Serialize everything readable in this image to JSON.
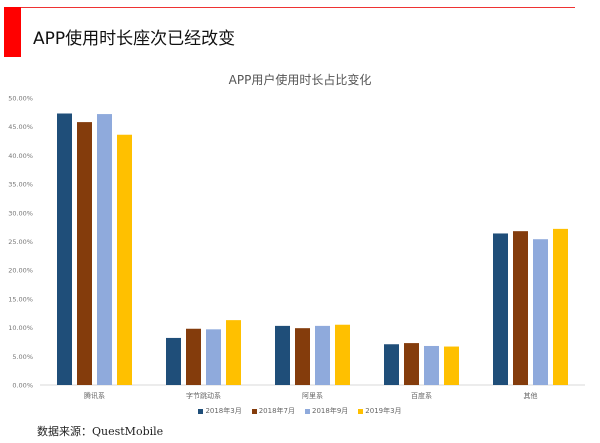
{
  "header": {
    "title": "APP使用时长座次已经改变"
  },
  "source": "数据来源：QuestMobile",
  "chart_data": {
    "type": "bar",
    "title": "APP用户使用时长占比变化",
    "xlabel": "",
    "ylabel": "",
    "ylim": [
      0,
      50
    ],
    "yticks": [
      "0.00%",
      "5.00%",
      "10.00%",
      "15.00%",
      "20.00%",
      "25.00%",
      "30.00%",
      "35.00%",
      "40.00%",
      "45.00%",
      "50.00%"
    ],
    "categories": [
      "腾讯系",
      "字节跳动系",
      "阿里系",
      "百度系",
      "其他"
    ],
    "series": [
      {
        "name": "2018年3月",
        "color": "#1f4e79",
        "values": [
          47.3,
          8.2,
          10.3,
          7.1,
          26.4
        ]
      },
      {
        "name": "2018年7月",
        "color": "#843c0c",
        "values": [
          45.8,
          9.8,
          9.9,
          7.3,
          26.8
        ]
      },
      {
        "name": "2018年9月",
        "color": "#8faadc",
        "values": [
          47.2,
          9.7,
          10.3,
          6.8,
          25.4
        ]
      },
      {
        "name": "2019年3月",
        "color": "#ffc000",
        "values": [
          43.6,
          11.3,
          10.5,
          6.7,
          27.2
        ]
      }
    ],
    "legend_position": "bottom",
    "grid": false
  }
}
